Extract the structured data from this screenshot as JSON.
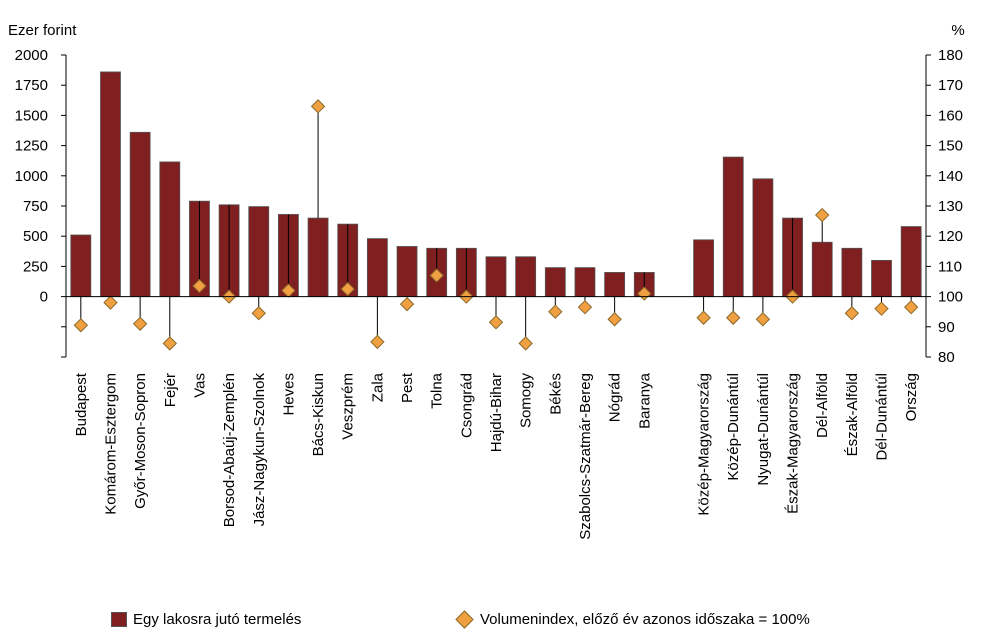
{
  "chart_data": {
    "type": "bar",
    "left_axis_label": "Ezer forint",
    "right_axis_label": "%",
    "left_ylim": [
      -500,
      2000
    ],
    "left_ticks": [
      0,
      250,
      500,
      750,
      1000,
      1250,
      1500,
      1750,
      2000
    ],
    "right_ylim": [
      80,
      180
    ],
    "right_ticks": [
      80,
      90,
      100,
      110,
      120,
      130,
      140,
      150,
      160,
      170,
      180
    ],
    "categories": [
      "Budapest",
      "Komárom-Esztergom",
      "Győr-Moson-Sopron",
      "Fejér",
      "Vas",
      "Borsod-Abaúj-Zemplén",
      "Jász-Nagykun-Szolnok",
      "Heves",
      "Bács-Kiskun",
      "Veszprém",
      "Zala",
      "Pest",
      "Tolna",
      "Csongrád",
      "Hajdú-Bihar",
      "Somogy",
      "Békés",
      "Szabolcs-Szatmár-Bereg",
      "Nógrád",
      "Baranya",
      "",
      "Közép-Magyarország",
      "Közép-Dunántúl",
      "Nyugat-Dunántúl",
      "Észak-Magyarország",
      "Dél-Alföld",
      "Észak-Alföld",
      "Dél-Dunántúl",
      "Ország"
    ],
    "series": [
      {
        "name": "Egy lakosra jutó termelés",
        "axis": "left",
        "kind": "bar",
        "color": "#7f1f1f",
        "values": [
          510,
          1860,
          1360,
          1115,
          790,
          760,
          745,
          680,
          650,
          600,
          480,
          415,
          400,
          400,
          330,
          330,
          240,
          240,
          200,
          200,
          null,
          470,
          1155,
          975,
          650,
          450,
          400,
          300,
          580
        ]
      },
      {
        "name": "Volumenindex, előző év azonos időszaka = 100%",
        "axis": "right",
        "kind": "marker",
        "color": "#f0a040",
        "values": [
          90.5,
          98,
          91,
          84.5,
          103.5,
          100,
          94.5,
          102,
          163,
          102.5,
          85,
          97.5,
          107,
          100,
          91.5,
          84.5,
          95,
          96.5,
          92.5,
          101,
          null,
          93,
          93,
          92.5,
          100,
          127,
          94.5,
          96,
          96.5
        ]
      }
    ]
  }
}
